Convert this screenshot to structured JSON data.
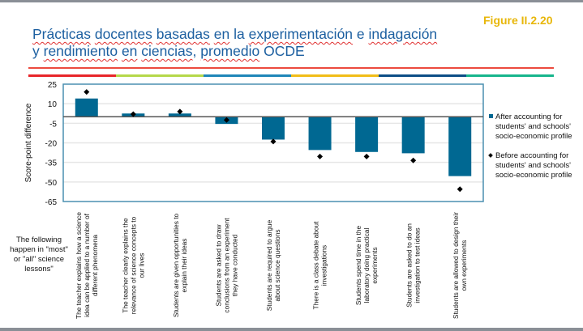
{
  "header": {
    "title_line1_parts": [
      {
        "text": "Prácticas",
        "flag": true
      },
      {
        "text": " ",
        "flag": false
      },
      {
        "text": "docentes",
        "flag": true
      },
      {
        "text": " ",
        "flag": false
      },
      {
        "text": "basadas",
        "flag": true
      },
      {
        "text": " ",
        "flag": false
      },
      {
        "text": "en",
        "flag": true
      },
      {
        "text": " la ",
        "flag": false
      },
      {
        "text": "experimentación",
        "flag": true
      },
      {
        "text": " e ",
        "flag": false
      },
      {
        "text": "indagación",
        "flag": true
      }
    ],
    "title_line2_parts": [
      {
        "text": "y ",
        "flag": false
      },
      {
        "text": "rendimiento",
        "flag": true
      },
      {
        "text": " ",
        "flag": false
      },
      {
        "text": "en",
        "flag": true
      },
      {
        "text": " ",
        "flag": false
      },
      {
        "text": "ciencias",
        "flag": true
      },
      {
        "text": ", ",
        "flag": false
      },
      {
        "text": "promedio",
        "flag": true
      },
      {
        "text": " OCDE",
        "flag": false
      }
    ],
    "figure_label": "Figure II.2.20",
    "rule_colors": [
      "#e8262a",
      "#b5d84a",
      "#1f86b8",
      "#f1bd18",
      "#0c4d86",
      "#17b58c"
    ],
    "title_color": "#1c5fa0",
    "figure_color": "#e8b70b"
  },
  "side_note": "The following happen in \"most\" or \"all\" science lessons\"",
  "chart_data": {
    "type": "bar",
    "title": "Prácticas docentes basadas en la experimentación e indagación y rendimiento en ciencias, promedio OCDE",
    "xlabel": "",
    "ylabel": "Score-point difference",
    "ylim": [
      -65,
      25
    ],
    "yticks": [
      25,
      10,
      -5,
      -20,
      -35,
      -50,
      -65
    ],
    "grid": true,
    "legend_position": "right",
    "categories": [
      "The teacher explains how a science idea can be applied to a number of different phenomena",
      "The teacher clearly explains the relevance of science concepts to our lives",
      "Students are given opportunities to explain their ideas",
      "Students are asked to draw conclusions from an experiment they have conducted",
      "Students are required to argue about science questions",
      "There is a class debate about investigations",
      "Students spend time in the laboratory doing practical experiments",
      "Students are asked to do an investigation to test ideas",
      "Students are allowed to design their own experiments"
    ],
    "category_lines": [
      [
        "The teacher explains how a science",
        "idea can be applied to a number of",
        "different phenomena"
      ],
      [
        "The teacher clearly explains the",
        "relevance of science concepts to",
        "our lives"
      ],
      [
        "Students are given opportunities to",
        "explain their ideas"
      ],
      [
        "Students are asked to draw",
        "conclusions from an experiment",
        "they have conducted"
      ],
      [
        "Students are required to argue",
        "about science questions"
      ],
      [
        "There is a class debate about",
        "investigations"
      ],
      [
        "Students spend time in the",
        "laboratory doing practical",
        "experiments"
      ],
      [
        "Students are asked to do an",
        "investigation to test ideas"
      ],
      [
        "Students are allowed to design their",
        "own experiments"
      ]
    ],
    "series": [
      {
        "name": "After accounting for students' and schools' socio-economic profile",
        "marker": "bar",
        "color": "#006892",
        "values": [
          14,
          2.5,
          2.5,
          -5.5,
          -17.5,
          -25.5,
          -27,
          -28,
          -45.5
        ]
      },
      {
        "name": "Before accounting for students' and schools' socio-economic profile",
        "marker": "diamond",
        "color": "#000000",
        "values": [
          19,
          2,
          4,
          -2.5,
          -19,
          -30.5,
          -30.5,
          -33.5,
          -55.5
        ]
      }
    ]
  }
}
